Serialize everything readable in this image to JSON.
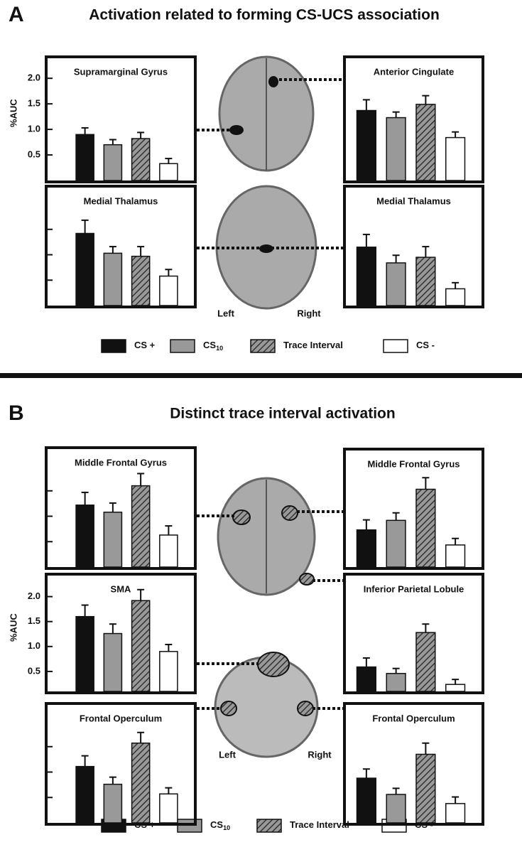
{
  "sections": [
    {
      "letter": "A",
      "title": "Activation related to forming CS-UCS association",
      "brain_labels": [
        "Left",
        "Right"
      ],
      "legend": [
        {
          "name": "CS +",
          "color": "#111111"
        },
        {
          "name": "CS",
          "subscript": "10",
          "color": "#999999"
        },
        {
          "name": "Trace Interval",
          "color": "#999999",
          "pattern": "hatch"
        },
        {
          "name": "CS -",
          "color": "#ffffff"
        }
      ]
    },
    {
      "letter": "B",
      "title": "Distinct trace interval activation",
      "brain_labels": [
        "Left",
        "Right"
      ],
      "legend": [
        {
          "name": "CS +",
          "color": "#111111"
        },
        {
          "name": "CS",
          "subscript": "10",
          "color": "#999999"
        },
        {
          "name": "Trace Interval",
          "color": "#999999",
          "pattern": "hatch"
        },
        {
          "name": "CS -",
          "color": "#ffffff"
        }
      ]
    }
  ],
  "chart_data": [
    {
      "type": "bar",
      "title": "Supramarginal Gyrus",
      "ylabel": "%AUC",
      "values": [
        0.9,
        0.7,
        0.82,
        0.33
      ],
      "errors": [
        0.13,
        0.1,
        0.12,
        0.1
      ],
      "ylim": [
        0,
        2.42
      ],
      "yticks": [
        0.5,
        {
          "value": 1,
          "label": "1.0"
        },
        1.5,
        {
          "value": 2,
          "label": "2.0"
        }
      ]
    },
    {
      "type": "bar",
      "title": "Anterior Cingulate",
      "values": [
        1.37,
        1.23,
        1.49,
        0.84
      ],
      "errors": [
        0.21,
        0.11,
        0.17,
        0.11
      ],
      "ylim": [
        0,
        2.42
      ]
    },
    {
      "type": "bar",
      "title": "Medial Thalamus",
      "values": [
        1.42,
        1.03,
        0.97,
        0.58
      ],
      "errors": [
        0.26,
        0.13,
        0.19,
        0.13
      ],
      "ylim": [
        0,
        2.35
      ],
      "yticks": [
        0.5,
        1,
        1.5
      ],
      "tick_labels": false
    },
    {
      "type": "bar",
      "title": "Medial Thalamus",
      "values": [
        1.15,
        0.84,
        0.95,
        0.33
      ],
      "errors": [
        0.25,
        0.15,
        0.21,
        0.12
      ],
      "ylim": [
        0,
        2.35
      ]
    },
    {
      "type": "bar",
      "title": "Middle Frontal Gyrus",
      "values": [
        1.22,
        1.08,
        1.6,
        0.63
      ],
      "errors": [
        0.25,
        0.18,
        0.24,
        0.18
      ],
      "ylim": [
        0,
        2.35
      ],
      "yticks": [
        0.5,
        1,
        1.5
      ],
      "tick_labels": false
    },
    {
      "type": "bar",
      "title": "Middle Frontal Gyrus",
      "values": [
        0.74,
        0.93,
        1.55,
        0.44
      ],
      "errors": [
        0.2,
        0.15,
        0.23,
        0.13
      ],
      "ylim": [
        0,
        2.35
      ]
    },
    {
      "type": "bar",
      "title": "SMA",
      "ylabel": "%AUC",
      "values": [
        1.6,
        1.26,
        1.92,
        0.9
      ],
      "errors": [
        0.23,
        0.19,
        0.22,
        0.14
      ],
      "ylim": [
        0.1,
        2.45
      ],
      "yticks": [
        0.5,
        {
          "value": 1,
          "label": "1.0"
        },
        1.5,
        {
          "value": 2,
          "label": "2.0"
        }
      ]
    },
    {
      "type": "bar",
      "title": "Inferior Parietal Lobule",
      "values": [
        0.49,
        0.36,
        1.18,
        0.14
      ],
      "errors": [
        0.18,
        0.1,
        0.17,
        0.1
      ],
      "ylim": [
        0,
        2.35
      ]
    },
    {
      "type": "bar",
      "title": "Frontal Operculum",
      "values": [
        1.11,
        0.76,
        1.57,
        0.57
      ],
      "errors": [
        0.21,
        0.14,
        0.21,
        0.12
      ],
      "ylim": [
        0,
        2.35
      ],
      "yticks": [
        0.5,
        1,
        1.5
      ],
      "tick_labels": false
    },
    {
      "type": "bar",
      "title": "Frontal Operculum",
      "values": [
        0.88,
        0.56,
        1.35,
        0.38
      ],
      "errors": [
        0.18,
        0.12,
        0.22,
        0.13
      ],
      "ylim": [
        0,
        2.35
      ]
    }
  ]
}
